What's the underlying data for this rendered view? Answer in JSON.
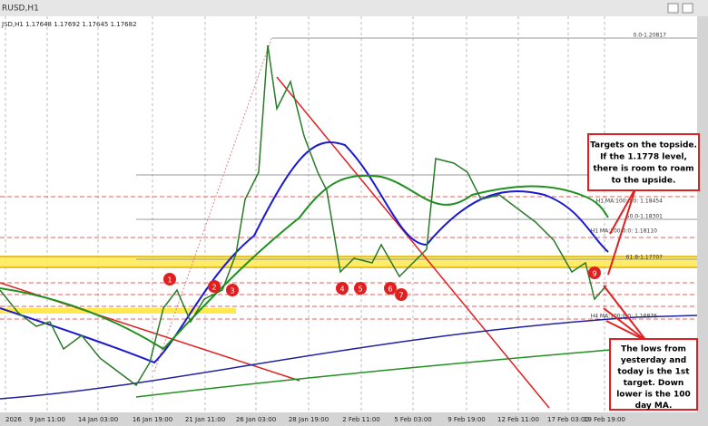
{
  "window": {
    "title": "RUSD,H1",
    "info": "JSD,H1  1.17648 1.17692 1.17645 1.17682"
  },
  "x_axis": [
    "2026",
    "9 Jan 11:00",
    "14 Jan 03:00",
    "16 Jan 19:00",
    "21 Jan 11:00",
    "26 Jan 03:00",
    "28 Jan 19:00",
    "2 Feb 11:00",
    "5 Feb 03:00",
    "9 Feb 19:00",
    "12 Feb 11:00",
    "17 Feb 03:00",
    "19 Feb 19:00"
  ],
  "levels": [
    "0.0-1.20817",
    "H1 MA:100:0:0: 1.18454",
    "50.0-1.18301",
    "H1 MA:100:0:0: 1.18110",
    "61.8-1.17707",
    "H4 MA:100:0:0: 1.16876"
  ],
  "markers": [
    "1",
    "2",
    "3",
    "4",
    "5",
    "6",
    "7",
    "9"
  ],
  "annotations": {
    "top": [
      "Targets on the topside.",
      "If the 1.1778 level,",
      "there is room to roam",
      "to the upside."
    ],
    "bottom": [
      "The lows from",
      "yesterday and",
      "today is the 1st",
      "target. Down",
      "lower is the 100",
      "day MA."
    ]
  }
}
